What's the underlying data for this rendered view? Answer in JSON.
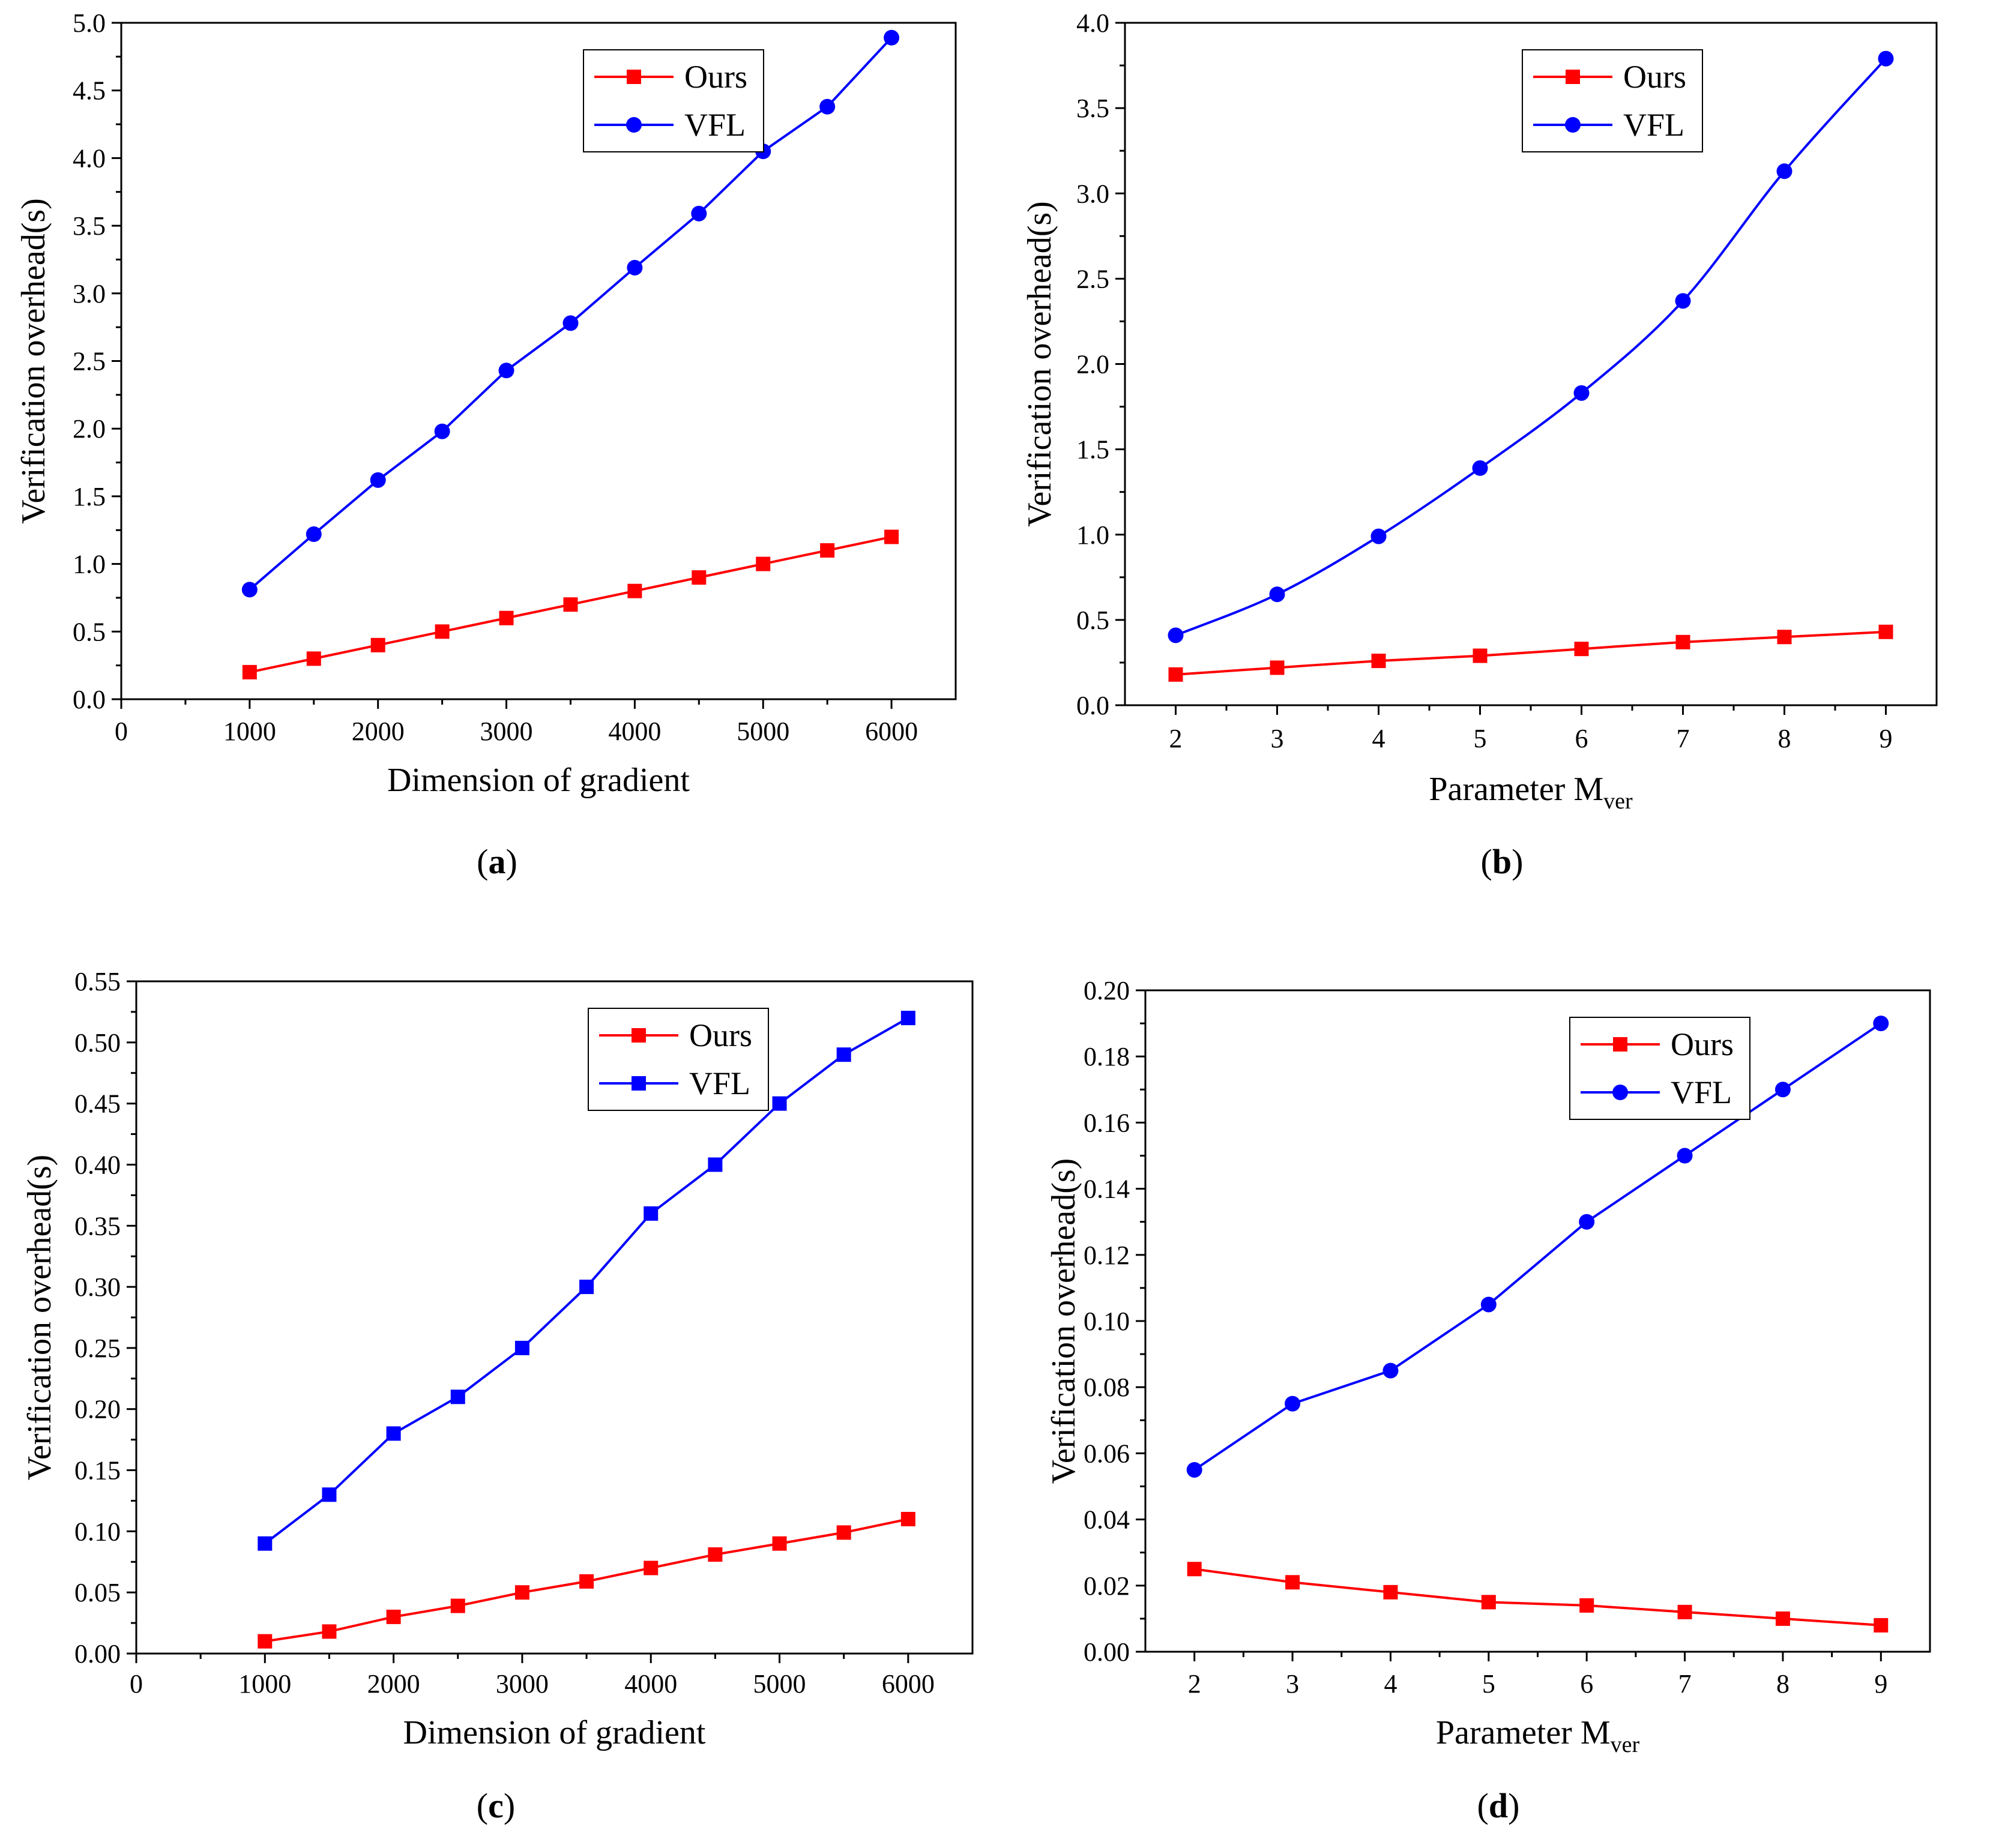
{
  "chart_data": [
    {
      "id": "a",
      "type": "line",
      "caption": "a",
      "xlabel": "Dimension of gradient",
      "xlabel_sub": "",
      "ylabel": "Verification overhead(s)",
      "xlim": [
        0,
        6500
      ],
      "ylim": [
        0,
        5.0
      ],
      "xticks": [
        0,
        1000,
        2000,
        3000,
        4000,
        5000,
        6000
      ],
      "xtick_labels": [
        "0",
        "1000",
        "2000",
        "3000",
        "4000",
        "5000",
        "6000"
      ],
      "yticks": [
        0,
        0.5,
        1.0,
        1.5,
        2.0,
        2.5,
        3.0,
        3.5,
        4.0,
        4.5,
        5.0
      ],
      "ytick_labels": [
        "0.0",
        "0.5",
        "1.0",
        "1.5",
        "2.0",
        "2.5",
        "3.0",
        "3.5",
        "4.0",
        "4.5",
        "5.0"
      ],
      "legend_position": "top-right",
      "smooth": false,
      "series": [
        {
          "name": "Ours",
          "color": "#ff0000",
          "marker": "square",
          "x": [
            1000,
            1500,
            2000,
            2500,
            3000,
            3500,
            4000,
            4500,
            5000,
            5500,
            6000
          ],
          "y": [
            0.2,
            0.3,
            0.4,
            0.5,
            0.6,
            0.7,
            0.8,
            0.9,
            1.0,
            1.1,
            1.2
          ]
        },
        {
          "name": "VFL",
          "color": "#0000ff",
          "marker": "circle",
          "x": [
            1000,
            1500,
            2000,
            2500,
            3000,
            3500,
            4000,
            4500,
            5000,
            5500,
            6000
          ],
          "y": [
            0.81,
            1.22,
            1.62,
            1.98,
            2.43,
            2.78,
            3.19,
            3.59,
            4.05,
            4.38,
            4.89
          ]
        }
      ]
    },
    {
      "id": "b",
      "type": "line",
      "caption": "b",
      "xlabel": "Parameter M",
      "xlabel_sub": "ver",
      "ylabel": "Verification overhead(s)",
      "xlim": [
        1.5,
        9.5
      ],
      "ylim": [
        0,
        4.0
      ],
      "xticks": [
        2,
        3,
        4,
        5,
        6,
        7,
        8,
        9
      ],
      "xtick_labels": [
        "2",
        "3",
        "4",
        "5",
        "6",
        "7",
        "8",
        "9"
      ],
      "yticks": [
        0,
        0.5,
        1.0,
        1.5,
        2.0,
        2.5,
        3.0,
        3.5,
        4.0
      ],
      "ytick_labels": [
        "0.0",
        "0.5",
        "1.0",
        "1.5",
        "2.0",
        "2.5",
        "3.0",
        "3.5",
        "4.0"
      ],
      "legend_position": "top-right",
      "smooth": true,
      "series": [
        {
          "name": "Ours",
          "color": "#ff0000",
          "marker": "square",
          "x": [
            2,
            3,
            4,
            5,
            6,
            7,
            8,
            9
          ],
          "y": [
            0.18,
            0.22,
            0.26,
            0.29,
            0.33,
            0.37,
            0.4,
            0.43
          ]
        },
        {
          "name": "VFL",
          "color": "#0000ff",
          "marker": "circle",
          "x": [
            2,
            3,
            4,
            5,
            6,
            7,
            8,
            9
          ],
          "y": [
            0.41,
            0.65,
            0.99,
            1.39,
            1.83,
            2.37,
            3.13,
            3.79
          ]
        }
      ]
    },
    {
      "id": "c",
      "type": "line",
      "caption": "c",
      "xlabel": "Dimension of gradient",
      "xlabel_sub": "",
      "ylabel": "Verification overhead(s)",
      "xlim": [
        0,
        6500
      ],
      "ylim": [
        0,
        0.55
      ],
      "xticks": [
        0,
        1000,
        2000,
        3000,
        4000,
        5000,
        6000
      ],
      "xtick_labels": [
        "0",
        "1000",
        "2000",
        "3000",
        "4000",
        "5000",
        "6000"
      ],
      "yticks": [
        0,
        0.05,
        0.1,
        0.15,
        0.2,
        0.25,
        0.3,
        0.35,
        0.4,
        0.45,
        0.5,
        0.55
      ],
      "ytick_labels": [
        "0.00",
        "0.05",
        "0.10",
        "0.15",
        "0.20",
        "0.25",
        "0.30",
        "0.35",
        "0.40",
        "0.45",
        "0.50",
        "0.55"
      ],
      "legend_position": "top-right",
      "smooth": false,
      "series": [
        {
          "name": "Ours",
          "color": "#ff0000",
          "marker": "square",
          "x": [
            1000,
            1500,
            2000,
            2500,
            3000,
            3500,
            4000,
            4500,
            5000,
            5500,
            6000
          ],
          "y": [
            0.01,
            0.018,
            0.03,
            0.039,
            0.05,
            0.059,
            0.07,
            0.081,
            0.09,
            0.099,
            0.11
          ]
        },
        {
          "name": "VFL",
          "color": "#0000ff",
          "marker": "square",
          "x": [
            1000,
            1500,
            2000,
            2500,
            3000,
            3500,
            4000,
            4500,
            5000,
            5500,
            6000
          ],
          "y": [
            0.09,
            0.13,
            0.18,
            0.21,
            0.25,
            0.3,
            0.36,
            0.4,
            0.45,
            0.49,
            0.52
          ]
        }
      ]
    },
    {
      "id": "d",
      "type": "line",
      "caption": "d",
      "xlabel": "Parameter M",
      "xlabel_sub": "ver",
      "ylabel": "Verification overhead(s)",
      "xlim": [
        1.5,
        9.5
      ],
      "ylim": [
        0,
        0.2
      ],
      "xticks": [
        2,
        3,
        4,
        5,
        6,
        7,
        8,
        9
      ],
      "xtick_labels": [
        "2",
        "3",
        "4",
        "5",
        "6",
        "7",
        "8",
        "9"
      ],
      "yticks": [
        0,
        0.02,
        0.04,
        0.06,
        0.08,
        0.1,
        0.12,
        0.14,
        0.16,
        0.18,
        0.2
      ],
      "ytick_labels": [
        "0.00",
        "0.02",
        "0.04",
        "0.06",
        "0.08",
        "0.10",
        "0.12",
        "0.14",
        "0.16",
        "0.18",
        "0.20"
      ],
      "legend_position": "top-right",
      "smooth": false,
      "series": [
        {
          "name": "Ours",
          "color": "#ff0000",
          "marker": "square",
          "x": [
            2,
            3,
            4,
            5,
            6,
            7,
            8,
            9
          ],
          "y": [
            0.025,
            0.021,
            0.018,
            0.015,
            0.014,
            0.012,
            0.01,
            0.008
          ]
        },
        {
          "name": "VFL",
          "color": "#0000ff",
          "marker": "circle",
          "x": [
            2,
            3,
            4,
            5,
            6,
            7,
            8,
            9
          ],
          "y": [
            0.055,
            0.075,
            0.085,
            0.105,
            0.13,
            0.15,
            0.17,
            0.19
          ]
        }
      ]
    }
  ]
}
